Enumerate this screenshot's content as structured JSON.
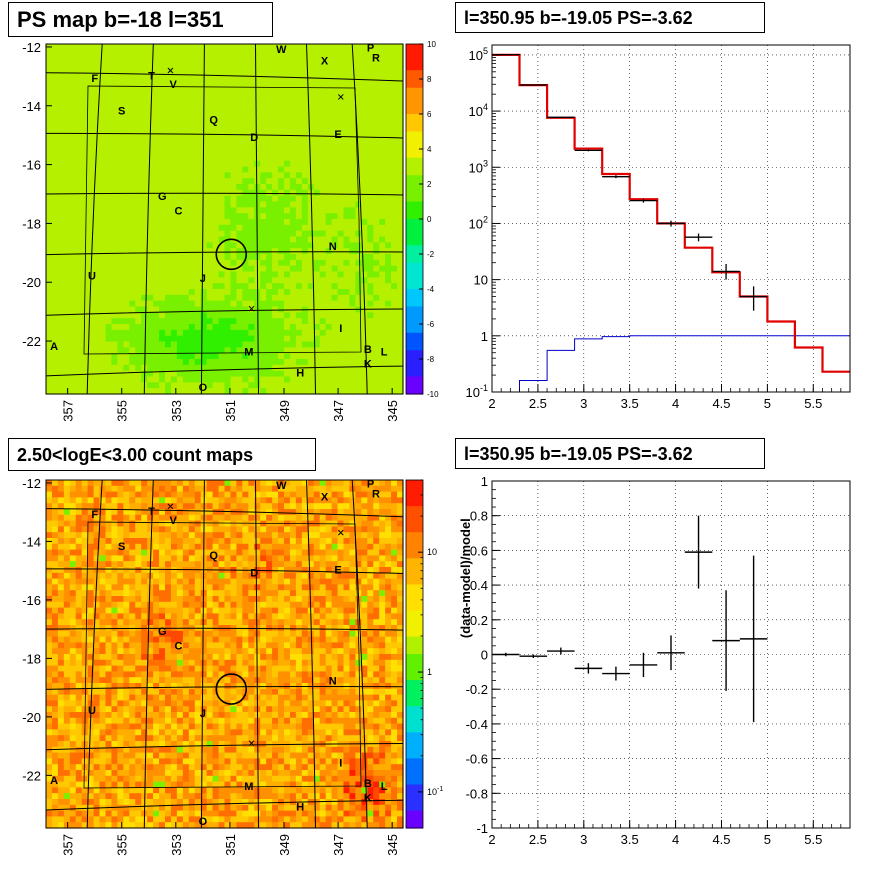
{
  "titles": {
    "ps_map": "PS map b=-18 l=351",
    "spectrum": "l=350.95 b=-19.05 PS=-3.62",
    "count_map": "2.50<logE<3.00 count maps",
    "residual": "l=350.95 b=-19.05 PS=-3.62"
  },
  "colors": {
    "data": "#000000",
    "model": "#e00000",
    "component": "#0000cc",
    "grid": "#000000"
  },
  "chart_data": [
    {
      "type": "heatmap",
      "name": "ps_map",
      "xlim": [
        357.8,
        344.6
      ],
      "ylim": [
        -23.8,
        -11.9
      ],
      "x_ticks": [
        "357",
        "355",
        "353",
        "351",
        "349",
        "347",
        "345"
      ],
      "x_tick_values": [
        357,
        355,
        353,
        351,
        349,
        347,
        345
      ],
      "y_ticks": [
        "-12",
        "-14",
        "-16",
        "-18",
        "-20",
        "-22"
      ],
      "y_tick_values": [
        -12,
        -14,
        -16,
        -18,
        -20,
        -22
      ],
      "colorbar": {
        "range": [
          -10,
          10
        ],
        "ticks": [
          "10",
          "8",
          "6",
          "4",
          "2",
          "0",
          "-2",
          "-4",
          "-6",
          "-8",
          "-10"
        ],
        "tick_values": [
          10,
          8,
          6,
          4,
          2,
          0,
          -2,
          -4,
          -6,
          -8,
          -10
        ],
        "log": false
      },
      "circle": {
        "l": 350.95,
        "b": -19.05
      },
      "crosses": [
        {
          "l": 353.2,
          "b": -12.8
        },
        {
          "l": 346.9,
          "b": -13.7
        },
        {
          "l": 350.2,
          "b": -20.9
        }
      ],
      "sources": [
        {
          "label": "W",
          "l": 349.1,
          "b": -12.1
        },
        {
          "label": "X",
          "l": 347.5,
          "b": -12.5
        },
        {
          "label": "P",
          "l": 345.8,
          "b": -12.05
        },
        {
          "label": "R",
          "l": 345.6,
          "b": -12.4
        },
        {
          "label": "F",
          "l": 356.0,
          "b": -13.1
        },
        {
          "label": "T",
          "l": 353.9,
          "b": -13.0
        },
        {
          "label": "V",
          "l": 353.1,
          "b": -13.3
        },
        {
          "label": "S",
          "l": 355.0,
          "b": -14.2
        },
        {
          "label": "Q",
          "l": 351.6,
          "b": -14.5
        },
        {
          "label": "D",
          "l": 350.1,
          "b": -15.1
        },
        {
          "label": "E",
          "l": 347.0,
          "b": -15.0
        },
        {
          "label": "G",
          "l": 353.5,
          "b": -17.1
        },
        {
          "label": "C",
          "l": 352.9,
          "b": -17.6
        },
        {
          "label": "N",
          "l": 347.2,
          "b": -18.8
        },
        {
          "label": "U",
          "l": 356.1,
          "b": -19.8
        },
        {
          "label": "J",
          "l": 352.0,
          "b": -19.9
        },
        {
          "label": "I",
          "l": 346.9,
          "b": -21.6
        },
        {
          "label": "A",
          "l": 357.5,
          "b": -22.2
        },
        {
          "label": "M",
          "l": 350.3,
          "b": -22.4
        },
        {
          "label": "B",
          "l": 345.9,
          "b": -22.3
        },
        {
          "label": "L",
          "l": 345.3,
          "b": -22.4
        },
        {
          "label": "K",
          "l": 345.9,
          "b": -22.8
        },
        {
          "label": "H",
          "l": 348.4,
          "b": -23.1
        },
        {
          "label": "O",
          "l": 352.0,
          "b": -23.6
        }
      ]
    },
    {
      "type": "line",
      "name": "spectrum",
      "xlim": [
        2.0,
        5.9
      ],
      "ylim": [
        0.1,
        150000
      ],
      "ylog": true,
      "grid": true,
      "x_ticks": [
        "2",
        "2.5",
        "3",
        "3.5",
        "4",
        "4.5",
        "5",
        "5.5"
      ],
      "x_tick_values": [
        2,
        2.5,
        3,
        3.5,
        4,
        4.5,
        5,
        5.5
      ],
      "y_tick_values": [
        0.1,
        1,
        10,
        100,
        1000,
        10000,
        100000
      ],
      "y_ticks": [
        {
          "base": "10",
          "exp": "-1"
        },
        {
          "base": "1",
          "exp": ""
        },
        {
          "base": "10",
          "exp": ""
        },
        {
          "base": "10",
          "exp": "2"
        },
        {
          "base": "10",
          "exp": "3"
        },
        {
          "base": "10",
          "exp": "4"
        },
        {
          "base": "10",
          "exp": "5"
        }
      ],
      "bin_edges": [
        2.0,
        2.3,
        2.6,
        2.9,
        3.2,
        3.5,
        3.8,
        4.1,
        4.4,
        4.7,
        5.0,
        5.3,
        5.6,
        5.9
      ],
      "model": [
        100000,
        29000,
        7600,
        2150,
        760,
        270,
        100,
        37,
        13.5,
        5.0,
        1.8,
        0.62,
        0.23
      ],
      "component": [
        0.08,
        0.16,
        0.55,
        0.88,
        0.97,
        1.0,
        1.0,
        1.0,
        1.0,
        1.0,
        1.0,
        1.0,
        1.0
      ],
      "data": [
        {
          "x": 2.15,
          "y": 101000,
          "lo": 100000,
          "hi": 102000
        },
        {
          "x": 2.45,
          "y": 29100,
          "lo": 28700,
          "hi": 29500
        },
        {
          "x": 2.75,
          "y": 7750,
          "lo": 7600,
          "hi": 7900
        },
        {
          "x": 3.05,
          "y": 2000,
          "lo": 1920,
          "hi": 2080
        },
        {
          "x": 3.35,
          "y": 680,
          "lo": 640,
          "hi": 720
        },
        {
          "x": 3.65,
          "y": 255,
          "lo": 235,
          "hi": 275
        },
        {
          "x": 3.95,
          "y": 100,
          "lo": 88,
          "hi": 112
        },
        {
          "x": 4.25,
          "y": 57,
          "lo": 48,
          "hi": 66
        },
        {
          "x": 4.55,
          "y": 14,
          "lo": 10,
          "hi": 19
        },
        {
          "x": 4.85,
          "y": 5.0,
          "lo": 2.8,
          "hi": 7.6
        }
      ]
    },
    {
      "type": "heatmap",
      "name": "count_map",
      "xlim": [
        357.8,
        344.6
      ],
      "ylim": [
        -23.8,
        -11.9
      ],
      "x_ticks": [
        "357",
        "355",
        "353",
        "351",
        "349",
        "347",
        "345"
      ],
      "x_tick_values": [
        357,
        355,
        353,
        351,
        349,
        347,
        345
      ],
      "y_ticks": [
        "-12",
        "-14",
        "-16",
        "-18",
        "-20",
        "-22"
      ],
      "y_tick_values": [
        -12,
        -14,
        -16,
        -18,
        -20,
        -22
      ],
      "colorbar": {
        "range": [
          0.05,
          40
        ],
        "log": true,
        "ticks": [
          {
            "base": "10",
            "exp": "",
            "value": 10
          },
          {
            "base": "1",
            "exp": "",
            "value": 1
          },
          {
            "base": "10",
            "exp": "-1",
            "value": 0.1
          }
        ]
      },
      "circle": {
        "l": 350.95,
        "b": -19.05
      },
      "crosses": [
        {
          "l": 353.2,
          "b": -12.8
        },
        {
          "l": 346.9,
          "b": -13.7
        },
        {
          "l": 350.2,
          "b": -20.9
        }
      ],
      "sources": [
        {
          "label": "W",
          "l": 349.1,
          "b": -12.1
        },
        {
          "label": "X",
          "l": 347.5,
          "b": -12.5
        },
        {
          "label": "P",
          "l": 345.8,
          "b": -12.05
        },
        {
          "label": "R",
          "l": 345.6,
          "b": -12.4
        },
        {
          "label": "F",
          "l": 356.0,
          "b": -13.1
        },
        {
          "label": "T",
          "l": 353.9,
          "b": -13.0
        },
        {
          "label": "V",
          "l": 353.1,
          "b": -13.3
        },
        {
          "label": "S",
          "l": 355.0,
          "b": -14.2
        },
        {
          "label": "Q",
          "l": 351.6,
          "b": -14.5
        },
        {
          "label": "D",
          "l": 350.1,
          "b": -15.1
        },
        {
          "label": "E",
          "l": 347.0,
          "b": -15.0
        },
        {
          "label": "G",
          "l": 353.5,
          "b": -17.1
        },
        {
          "label": "C",
          "l": 352.9,
          "b": -17.6
        },
        {
          "label": "N",
          "l": 347.2,
          "b": -18.8
        },
        {
          "label": "U",
          "l": 356.1,
          "b": -19.8
        },
        {
          "label": "J",
          "l": 352.0,
          "b": -19.9
        },
        {
          "label": "I",
          "l": 346.9,
          "b": -21.6
        },
        {
          "label": "A",
          "l": 357.5,
          "b": -22.2
        },
        {
          "label": "M",
          "l": 350.3,
          "b": -22.4
        },
        {
          "label": "B",
          "l": 345.9,
          "b": -22.3
        },
        {
          "label": "L",
          "l": 345.3,
          "b": -22.4
        },
        {
          "label": "K",
          "l": 345.9,
          "b": -22.8
        },
        {
          "label": "H",
          "l": 348.4,
          "b": -23.1
        },
        {
          "label": "O",
          "l": 352.0,
          "b": -23.6
        }
      ]
    },
    {
      "type": "scatter",
      "name": "residual",
      "xlim": [
        2.0,
        5.9
      ],
      "ylim": [
        -1,
        1
      ],
      "grid": true,
      "ylabel": "(data-model)/model",
      "x_ticks": [
        "2",
        "2.5",
        "3",
        "3.5",
        "4",
        "4.5",
        "5",
        "5.5"
      ],
      "x_tick_values": [
        2,
        2.5,
        3,
        3.5,
        4,
        4.5,
        5,
        5.5
      ],
      "y_ticks": [
        "1",
        "0.8",
        "0.6",
        "0.4",
        "0.2",
        "0",
        "-0.2",
        "-0.4",
        "-0.6",
        "-0.8",
        "-1"
      ],
      "y_tick_values": [
        1,
        0.8,
        0.6,
        0.4,
        0.2,
        0,
        -0.2,
        -0.4,
        -0.6,
        -0.8,
        -1
      ],
      "points": [
        {
          "x": 2.15,
          "y": 0.0,
          "err": 0.01,
          "xerr": 0.15
        },
        {
          "x": 2.45,
          "y": -0.01,
          "err": 0.01,
          "xerr": 0.15
        },
        {
          "x": 2.75,
          "y": 0.02,
          "err": 0.02,
          "xerr": 0.15
        },
        {
          "x": 3.05,
          "y": -0.08,
          "err": 0.03,
          "xerr": 0.15
        },
        {
          "x": 3.35,
          "y": -0.11,
          "err": 0.04,
          "xerr": 0.15
        },
        {
          "x": 3.65,
          "y": -0.06,
          "err": 0.07,
          "xerr": 0.15
        },
        {
          "x": 3.95,
          "y": 0.01,
          "err": 0.1,
          "xerr": 0.15
        },
        {
          "x": 4.25,
          "y": 0.59,
          "err": 0.21,
          "xerr": 0.15
        },
        {
          "x": 4.55,
          "y": 0.08,
          "err": 0.29,
          "xerr": 0.15
        },
        {
          "x": 4.85,
          "y": 0.09,
          "err": 0.48,
          "xerr": 0.15
        }
      ]
    }
  ]
}
